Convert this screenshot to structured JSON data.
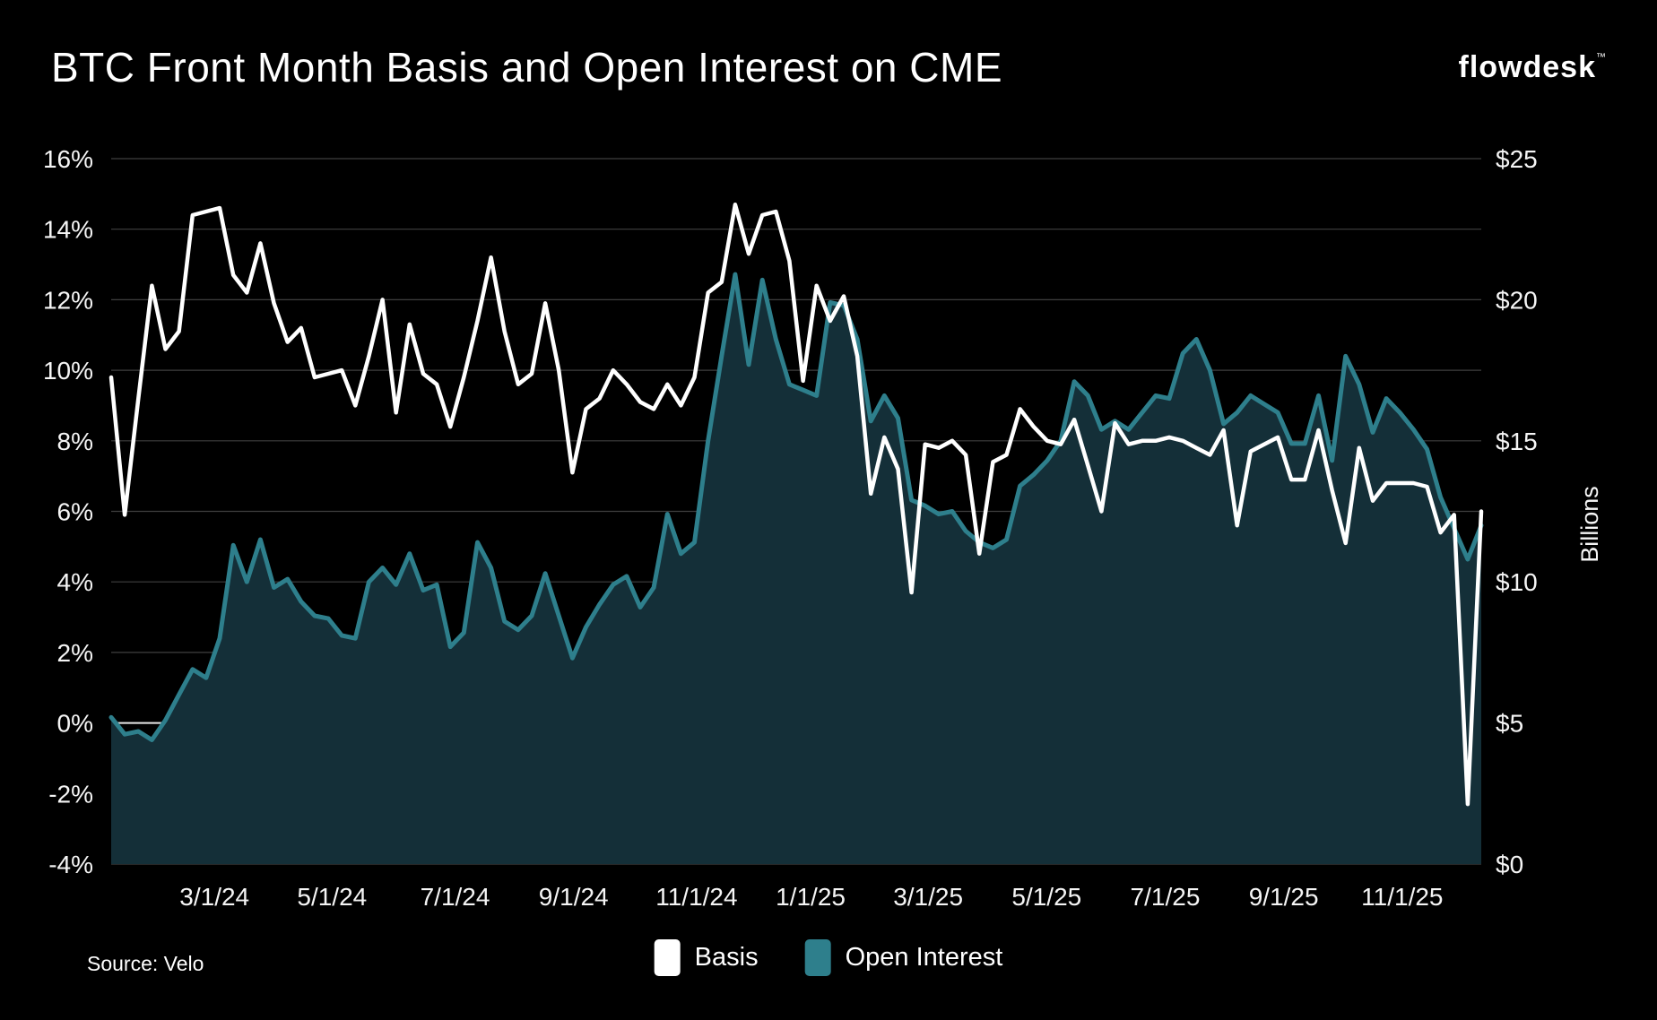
{
  "page": {
    "background": "#000000",
    "text_color": "#ffffff"
  },
  "header": {
    "title": "BTC Front Month Basis and Open Interest on CME",
    "logo_text": "flowdesk",
    "logo_tm": "™"
  },
  "footer": {
    "source": "Source: Velo"
  },
  "legend": {
    "items": [
      {
        "label": "Basis",
        "color": "#ffffff"
      },
      {
        "label": "Open Interest",
        "color": "#2e7f8c"
      }
    ]
  },
  "chart_data": {
    "type": "line+area",
    "title": "BTC Front Month Basis and Open Interest on CME",
    "x_frequency": "weekly",
    "x_range": [
      "1/5/24",
      "12/19/25"
    ],
    "grid": "horizontal-only",
    "colors": {
      "background": "#000000",
      "grid": "#3f3f3f",
      "zero_line": "#e8e8e8",
      "axis_text": "#f5f5f5",
      "basis_line": "#ffffff",
      "oi_line": "#2e7f8c",
      "oi_fill": "#142f38"
    },
    "y_left": {
      "min": -4,
      "max": 16,
      "step": 2,
      "format": "percent",
      "zero_line": true,
      "ticks": [
        "16%",
        "14%",
        "12%",
        "10%",
        "8%",
        "6%",
        "4%",
        "2%",
        "0%",
        "-2%",
        "-4%"
      ]
    },
    "y_right": {
      "min": 0,
      "max": 25,
      "step": 5,
      "format": "dollar_billions",
      "label": "Billions",
      "ticks": [
        "$25",
        "$20",
        "$15",
        "$10",
        "$5",
        "$0"
      ]
    },
    "x_ticks": [
      {
        "label": "3/1/24",
        "pos": 0.0754
      },
      {
        "label": "5/1/24",
        "pos": 0.1612
      },
      {
        "label": "7/1/24",
        "pos": 0.251
      },
      {
        "label": "9/1/24",
        "pos": 0.3375
      },
      {
        "label": "11/1/24",
        "pos": 0.4273
      },
      {
        "label": "1/1/25",
        "pos": 0.5105
      },
      {
        "label": "3/1/25",
        "pos": 0.5963
      },
      {
        "label": "5/1/25",
        "pos": 0.6828
      },
      {
        "label": "7/1/25",
        "pos": 0.7693
      },
      {
        "label": "9/1/25",
        "pos": 0.8558
      },
      {
        "label": "11/1/25",
        "pos": 0.9423
      }
    ],
    "series": [
      {
        "name": "Basis",
        "axis": "left",
        "type": "line",
        "color": "#ffffff",
        "unit": "percent",
        "values": [
          9.8,
          5.9,
          9.2,
          12.4,
          10.6,
          11.1,
          14.4,
          14.5,
          14.6,
          12.7,
          12.2,
          13.6,
          11.9,
          10.8,
          11.2,
          9.8,
          9.9,
          10.0,
          9.0,
          10.4,
          12.0,
          8.8,
          11.3,
          9.9,
          9.6,
          8.4,
          9.8,
          11.4,
          13.2,
          11.1,
          9.6,
          9.9,
          11.9,
          10.0,
          7.1,
          8.9,
          9.2,
          10.0,
          9.6,
          9.1,
          8.9,
          9.6,
          9.0,
          9.8,
          12.2,
          12.5,
          14.7,
          13.3,
          14.4,
          14.5,
          13.1,
          9.7,
          12.4,
          11.4,
          12.1,
          10.4,
          6.5,
          8.1,
          7.2,
          3.7,
          7.9,
          7.8,
          8.0,
          7.6,
          4.8,
          7.4,
          7.6,
          8.9,
          8.4,
          8.0,
          7.9,
          8.6,
          7.3,
          6.0,
          8.5,
          7.9,
          8.0,
          8.0,
          8.1,
          8.0,
          7.8,
          7.6,
          8.3,
          5.6,
          7.7,
          7.9,
          8.1,
          6.9,
          6.9,
          8.3,
          6.6,
          5.1,
          7.8,
          6.3,
          6.8,
          6.8,
          6.8,
          6.7,
          5.4,
          5.9,
          -2.3,
          6.0
        ]
      },
      {
        "name": "Open Interest",
        "axis": "right",
        "type": "area",
        "color": "#2e7f8c",
        "fill": "#142f38",
        "unit": "usd_billions",
        "values": [
          5.2,
          4.6,
          4.7,
          4.4,
          5.1,
          6.0,
          6.9,
          6.6,
          8.0,
          11.3,
          10.0,
          11.5,
          9.8,
          10.1,
          9.3,
          8.8,
          8.7,
          8.1,
          8.0,
          10.0,
          10.5,
          9.9,
          11.0,
          9.7,
          9.9,
          7.7,
          8.2,
          11.4,
          10.5,
          8.6,
          8.3,
          8.8,
          10.3,
          8.8,
          7.3,
          8.4,
          9.2,
          9.9,
          10.2,
          9.1,
          9.8,
          12.4,
          11.0,
          11.4,
          15.0,
          18.0,
          20.9,
          17.7,
          20.7,
          18.6,
          17.0,
          16.8,
          16.6,
          19.9,
          19.8,
          18.6,
          15.7,
          16.6,
          15.8,
          12.9,
          12.7,
          12.4,
          12.5,
          11.8,
          11.4,
          11.2,
          11.5,
          13.4,
          13.8,
          14.3,
          15.0,
          17.1,
          16.6,
          15.4,
          15.7,
          15.4,
          16.0,
          16.6,
          16.5,
          18.1,
          18.6,
          17.5,
          15.6,
          16.0,
          16.6,
          16.3,
          16.0,
          14.9,
          14.9,
          16.6,
          14.3,
          18.0,
          17.0,
          15.3,
          16.5,
          16.0,
          15.4,
          14.7,
          13.0,
          11.9,
          10.8,
          12.0
        ]
      }
    ]
  }
}
